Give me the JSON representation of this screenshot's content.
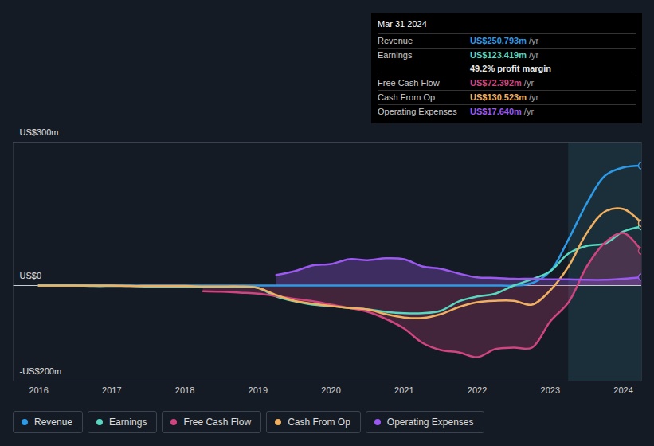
{
  "chart_data": {
    "type": "line",
    "x": [
      2016,
      2016.25,
      2016.5,
      2016.75,
      2017,
      2017.25,
      2017.5,
      2017.75,
      2018,
      2018.25,
      2018.5,
      2018.75,
      2019,
      2019.25,
      2019.5,
      2019.75,
      2020,
      2020.25,
      2020.5,
      2020.75,
      2021,
      2021.25,
      2021.5,
      2021.75,
      2022,
      2022.25,
      2022.5,
      2022.75,
      2023,
      2023.25,
      2023.5,
      2023.75,
      2024,
      2024.25
    ],
    "xlim": [
      2015.65,
      2024.25
    ],
    "xticks": [
      2016,
      2017,
      2018,
      2019,
      2020,
      2021,
      2022,
      2023,
      2024
    ],
    "ylim": [
      -200,
      300
    ],
    "yticks": [
      {
        "value": -200,
        "label": "-US$200m"
      },
      {
        "value": 0,
        "label": "US$0"
      },
      {
        "value": 300,
        "label": "US$300m"
      }
    ],
    "grid": true,
    "highlight_x": [
      2023.25,
      2024.25
    ],
    "series": [
      {
        "name": "Revenue",
        "color": "#2d9ae8",
        "values": [
          0,
          0,
          0,
          0,
          0,
          0,
          0,
          0,
          0,
          0,
          0,
          0,
          0,
          0,
          0,
          0,
          0,
          0,
          0,
          0,
          0,
          0,
          0,
          0,
          0,
          0,
          0,
          5,
          30,
          97,
          172,
          230,
          247,
          250.793
        ]
      },
      {
        "name": "Earnings",
        "color": "#58d8c0",
        "values": [
          0,
          0,
          0,
          -1,
          -1,
          -1,
          -2,
          -2,
          -2,
          -3,
          -3,
          -3,
          -5,
          -23,
          -33,
          -40,
          -43,
          -47,
          -50,
          -55,
          -58,
          -58,
          -53,
          -33,
          -23,
          -17,
          0,
          13,
          30,
          67,
          83,
          88,
          113,
          123.419
        ]
      },
      {
        "name": "Free Cash Flow",
        "color": "#d0457f",
        "values": [
          null,
          null,
          null,
          null,
          null,
          null,
          null,
          null,
          null,
          -12,
          -13,
          -15,
          -17,
          -22,
          -28,
          -33,
          -40,
          -47,
          -55,
          -70,
          -90,
          -120,
          -135,
          -140,
          -150,
          -133,
          -130,
          -130,
          -75,
          -35,
          40,
          90,
          110,
          72.392
        ]
      },
      {
        "name": "Cash From Op",
        "color": "#f0b060",
        "values": [
          0,
          0,
          0,
          0,
          0,
          -1,
          -1,
          -1,
          -1,
          -2,
          -2,
          -2,
          -5,
          -20,
          -32,
          -38,
          -43,
          -47,
          -50,
          -60,
          -67,
          -68,
          -60,
          -45,
          -35,
          -32,
          -32,
          -40,
          -10,
          40,
          110,
          155,
          160,
          130.523
        ]
      },
      {
        "name": "Operating Expenses",
        "color": "#9b59f0",
        "values": [
          null,
          null,
          null,
          null,
          null,
          null,
          null,
          null,
          null,
          null,
          null,
          null,
          null,
          22,
          30,
          42,
          45,
          55,
          53,
          57,
          55,
          40,
          35,
          25,
          17,
          16,
          14,
          14,
          13,
          13,
          12,
          12,
          14,
          17.64
        ]
      }
    ],
    "tooltip": {
      "date": "Mar 31 2024",
      "suffix": "/yr",
      "rows": [
        {
          "label": "Revenue",
          "value": "US$250.793m"
        },
        {
          "label": "Earnings",
          "value": "US$123.419m"
        },
        {
          "value": "49.2% profit margin"
        },
        {
          "label": "Free Cash Flow",
          "value": "US$72.392m"
        },
        {
          "label": "Cash From Op",
          "value": "US$130.523m"
        },
        {
          "label": "Operating Expenses",
          "value": "US$17.640m"
        }
      ]
    }
  }
}
